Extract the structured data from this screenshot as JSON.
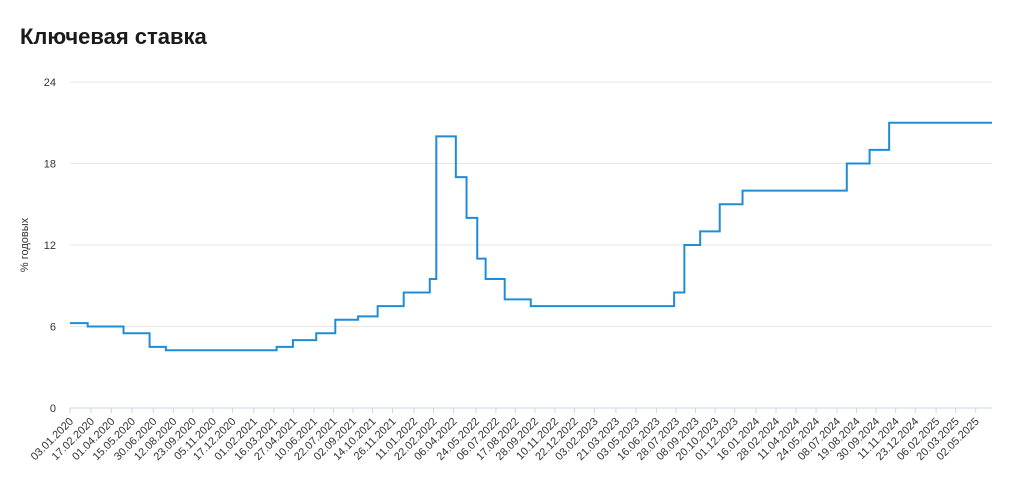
{
  "chart_data": {
    "type": "line",
    "step": true,
    "title": "Ключевая ставка",
    "xlabel": "",
    "ylabel": "% годовых",
    "ylim": [
      0,
      24
    ],
    "yticks": [
      0,
      6,
      12,
      18,
      24
    ],
    "xlim": [
      "2020-01-03",
      "2025-06-06"
    ],
    "grid": true,
    "line_color": "#1f8dd6",
    "xtick_labels": [
      "03.01.2020",
      "17.02.2020",
      "01.04.2020",
      "15.05.2020",
      "30.06.2020",
      "12.08.2020",
      "23.09.2020",
      "05.11.2020",
      "17.12.2020",
      "01.02.2021",
      "16.03.2021",
      "27.04.2021",
      "10.06.2021",
      "22.07.2021",
      "02.09.2021",
      "14.10.2021",
      "26.11.2021",
      "11.01.2022",
      "22.02.2022",
      "06.04.2022",
      "24.05.2022",
      "06.07.2022",
      "17.08.2022",
      "28.09.2022",
      "10.11.2022",
      "22.12.2022",
      "03.02.2023",
      "21.03.2023",
      "03.05.2023",
      "16.06.2023",
      "28.07.2023",
      "08.09.2023",
      "20.10.2023",
      "01.12.2023",
      "16.01.2024",
      "28.02.2024",
      "11.04.2024",
      "24.05.2024",
      "08.07.2024",
      "19.08.2024",
      "30.09.2024",
      "11.11.2024",
      "23.12.2024",
      "06.02.2025",
      "20.03.2025",
      "02.05.2025"
    ],
    "series": [
      {
        "x": [
          "2020-01-03",
          "2020-02-10",
          "2020-04-27",
          "2020-06-22",
          "2020-07-27",
          "2021-03-22",
          "2021-04-26",
          "2021-06-15",
          "2021-07-26",
          "2021-09-13",
          "2021-10-25",
          "2021-12-20",
          "2022-02-14",
          "2022-02-28",
          "2022-04-11",
          "2022-05-04",
          "2022-05-27",
          "2022-06-14",
          "2022-07-25",
          "2022-09-19",
          "2023-07-24",
          "2023-08-15",
          "2023-09-18",
          "2023-10-30",
          "2023-12-18",
          "2024-07-29",
          "2024-09-16",
          "2024-10-28",
          "2025-06-06"
        ],
        "y": [
          6.25,
          6.0,
          5.5,
          4.5,
          4.25,
          4.5,
          5.0,
          5.5,
          6.5,
          6.75,
          7.5,
          8.5,
          9.5,
          20,
          17,
          14,
          11,
          9.5,
          8,
          7.5,
          8.5,
          12,
          13,
          15,
          16,
          18,
          19,
          21,
          21
        ]
      }
    ]
  }
}
